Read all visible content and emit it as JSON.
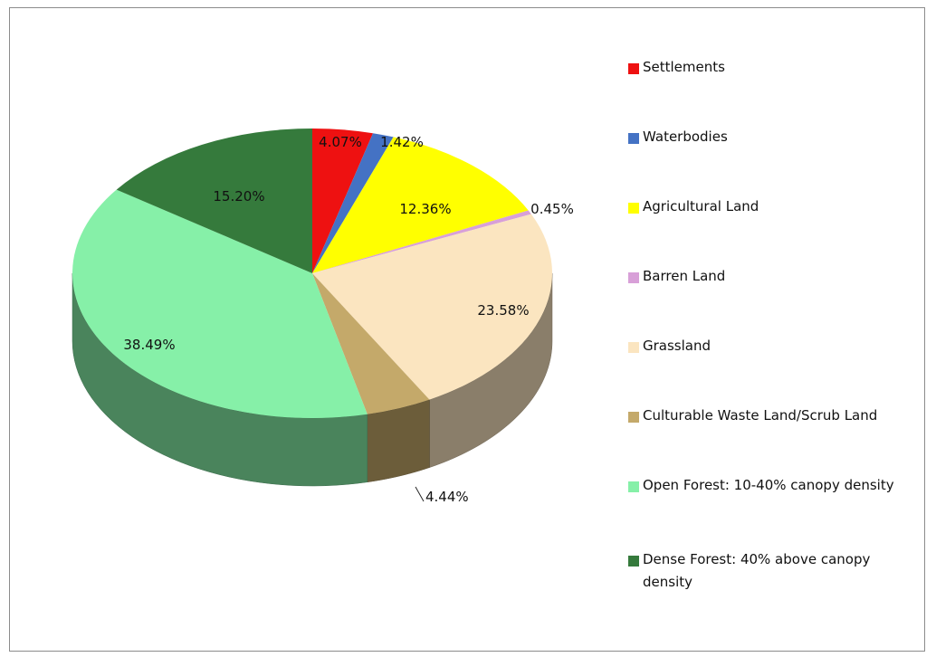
{
  "chart_data": {
    "type": "pie",
    "style": "3d",
    "title": "",
    "legend_position": "right",
    "slices": [
      {
        "label": "Settlements",
        "value": 4.07,
        "value_label": "4.07%",
        "color": "#ee1111"
      },
      {
        "label": "Waterbodies",
        "value": 1.42,
        "value_label": "1.42%",
        "color": "#4472c4"
      },
      {
        "label": "Agricultural Land",
        "value": 12.36,
        "value_label": "12.36%",
        "color": "#ffff00"
      },
      {
        "label": "Barren Land",
        "value": 0.45,
        "value_label": "0.45%",
        "color": "#d8a0d8"
      },
      {
        "label": "Grassland",
        "value": 23.58,
        "value_label": "23.58%",
        "color": "#fbe5c0"
      },
      {
        "label": "Culturable Waste Land/Scrub Land",
        "value": 4.44,
        "value_label": "4.44%",
        "color": "#c4a96a"
      },
      {
        "label": "Open Forest: 10-40% canopy density",
        "value": 38.49,
        "value_label": "38.49%",
        "color": "#86f0a8"
      },
      {
        "label": "Dense Forest: 40% above canopy density",
        "value": 15.2,
        "value_label": "15.20%",
        "color": "#357a3c"
      }
    ]
  }
}
